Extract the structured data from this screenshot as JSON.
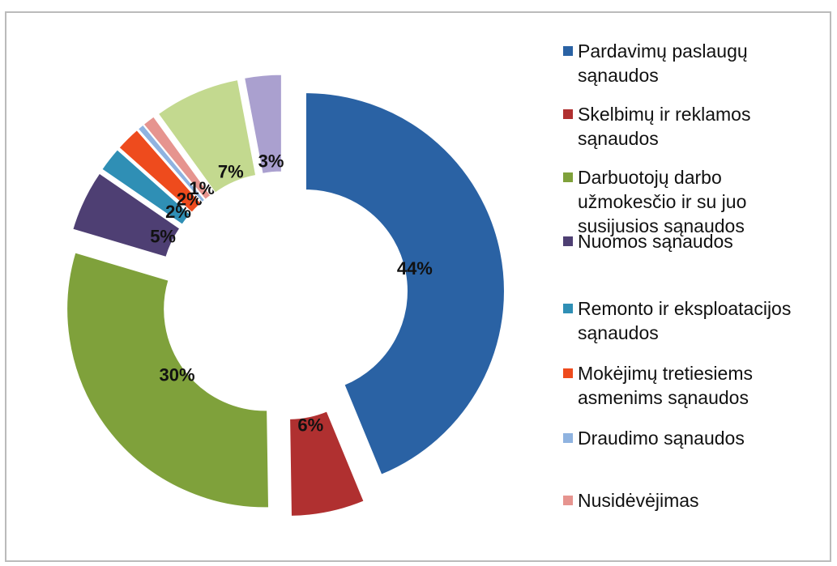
{
  "chart_data": {
    "type": "pie",
    "categories": [
      "Pardavimų paslaugų sąnaudos",
      "Skelbimų ir reklamos sąnaudos",
      "Darbuotojų darbo užmokesčio ir su juo susijusios sąnaudos",
      "Nuomos sąnaudos",
      "Remonto ir eksploatacijos sąnaudos",
      "Mokėjimų tretiesiems asmenims sąnaudos",
      "Draudimo sąnaudos",
      "Nusidėvėjimas",
      null,
      null
    ],
    "values": [
      44,
      6,
      30,
      5,
      2,
      2,
      0.5,
      1,
      7,
      3
    ],
    "value_labels": [
      "44%",
      "6%",
      "30%",
      "5%",
      "2%",
      "2%",
      null,
      "1%",
      "7%",
      "3%"
    ],
    "colors": [
      "#2a62a4",
      "#b03030",
      "#7fa13b",
      "#4e3f73",
      "#2f8fb5",
      "#ee4b1d",
      "#8fb3e0",
      "#e6948f",
      "#c3d98f",
      "#aaa0cf"
    ],
    "donut": true,
    "exploded": true
  }
}
